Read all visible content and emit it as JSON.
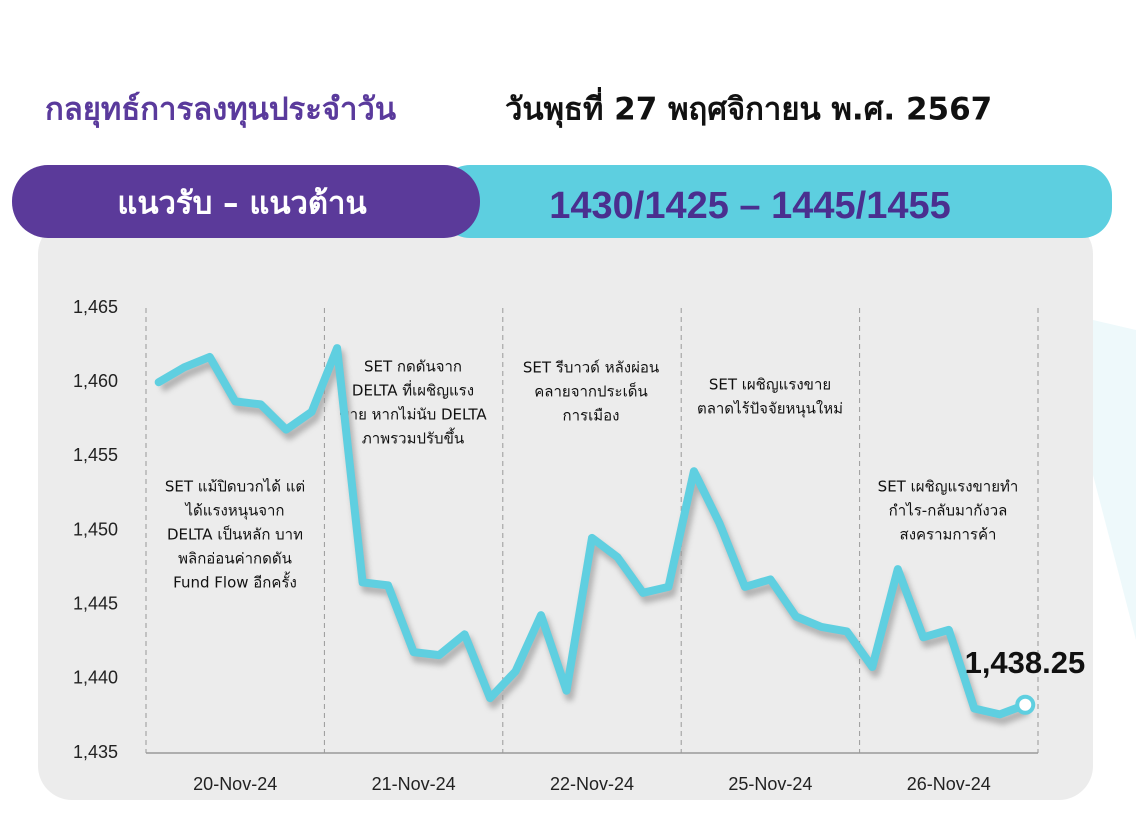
{
  "header": {
    "title": "กลยุทธ์การลงทุนประจำวัน",
    "date": "วันพุธที่ 27 พฤศจิกายน พ.ศ. 2567"
  },
  "band": {
    "label": "แนวรับ – แนวต้าน",
    "levels": "1430/1425 – 1445/1455"
  },
  "chart_data": {
    "type": "line",
    "color": "#5fcfe0",
    "categories": [
      "20-Nov-24",
      "21-Nov-24",
      "22-Nov-24",
      "25-Nov-24",
      "26-Nov-24"
    ],
    "values": [
      [
        1460,
        1461,
        1461.7,
        1458.7,
        1458.5,
        1456.8,
        1458
      ],
      [
        1462.3,
        1446.5,
        1446.3,
        1441.8,
        1441.6,
        1443,
        1438.7
      ],
      [
        1440.5,
        1444.3,
        1439.2,
        1449.5,
        1448.2,
        1445.8,
        1446.2
      ],
      [
        1454,
        1450.5,
        1446.2,
        1446.7,
        1444.2,
        1443.5,
        1443.2
      ],
      [
        1440.8,
        1447.4,
        1442.8,
        1443.3,
        1438,
        1437.6,
        1438.25
      ]
    ],
    "value_labels": [
      [
        null,
        null,
        null,
        null,
        null,
        null,
        null
      ],
      [
        null,
        null,
        null,
        null,
        null,
        null,
        null
      ],
      [
        null,
        null,
        null,
        null,
        null,
        null,
        null
      ],
      [
        null,
        null,
        null,
        null,
        null,
        null,
        null
      ],
      [
        null,
        null,
        null,
        null,
        null,
        null,
        "1,438.25"
      ]
    ],
    "ylim": [
      1435,
      1465
    ],
    "yticks": [
      {
        "value": 1435,
        "label": "1,435"
      },
      {
        "value": 1440,
        "label": "1,440"
      },
      {
        "value": 1445,
        "label": "1,445"
      },
      {
        "value": 1450,
        "label": "1,450"
      },
      {
        "value": 1455,
        "label": "1,455"
      },
      {
        "value": 1460,
        "label": "1,460"
      },
      {
        "value": 1465,
        "label": "1,465"
      }
    ],
    "annotations": [
      {
        "lines": [
          "SET แม้ปิดบวกได้ แต่",
          "ได้แรงหนุนจาก",
          "DELTA เป็นหลัก บาท",
          "พลิกอ่อนค่ากดดัน",
          "Fund Flow อีกครั้ง"
        ]
      },
      {
        "lines": [
          "SET กดดันจาก",
          "DELTA ที่เผชิญแรง",
          "ขาย หากไม่นับ DELTA",
          "ภาพรวมปรับขึ้น"
        ]
      },
      {
        "lines": [
          "SET รีบาวด์ หลังผ่อน",
          "คลายจากประเด็น",
          "การเมือง"
        ]
      },
      {
        "lines": [
          "SET เผชิญแรงขาย",
          "ตลาดไร้ปัจจัยหนุนใหม่"
        ]
      },
      {
        "lines": [
          "SET เผชิญแรงขายทำ",
          "กำไร-กลับมากังวล",
          "สงครามการค้า"
        ]
      }
    ]
  }
}
